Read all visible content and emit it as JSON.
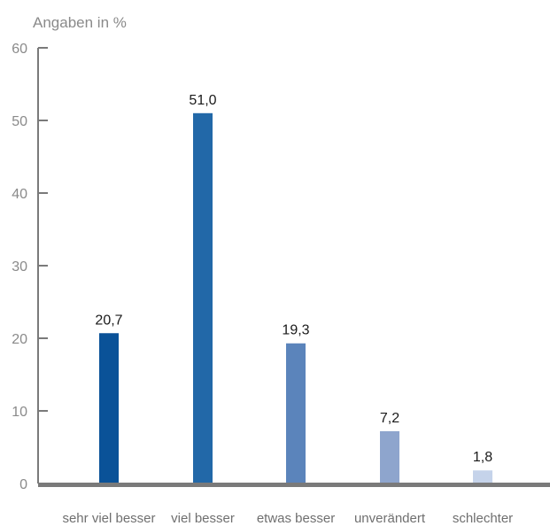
{
  "chart_data": {
    "type": "bar",
    "ylabel": "Angaben in %",
    "ylim": [
      0,
      60
    ],
    "yticks": [
      0,
      10,
      20,
      30,
      40,
      50,
      60
    ],
    "categories": [
      "sehr viel besser",
      "viel besser",
      "etwas besser",
      "unverändert",
      "schlechter"
    ],
    "values": [
      20.7,
      51.0,
      19.3,
      7.2,
      1.8
    ],
    "value_labels": [
      "20,7",
      "51,0",
      "19,3",
      "7,2",
      "1,8"
    ],
    "bar_colors": [
      "#0a5298",
      "#2268a8",
      "#5b84bb",
      "#8ea5cd",
      "#c5d3ea"
    ],
    "axis_color": "#7a7a7a",
    "grid": false
  }
}
